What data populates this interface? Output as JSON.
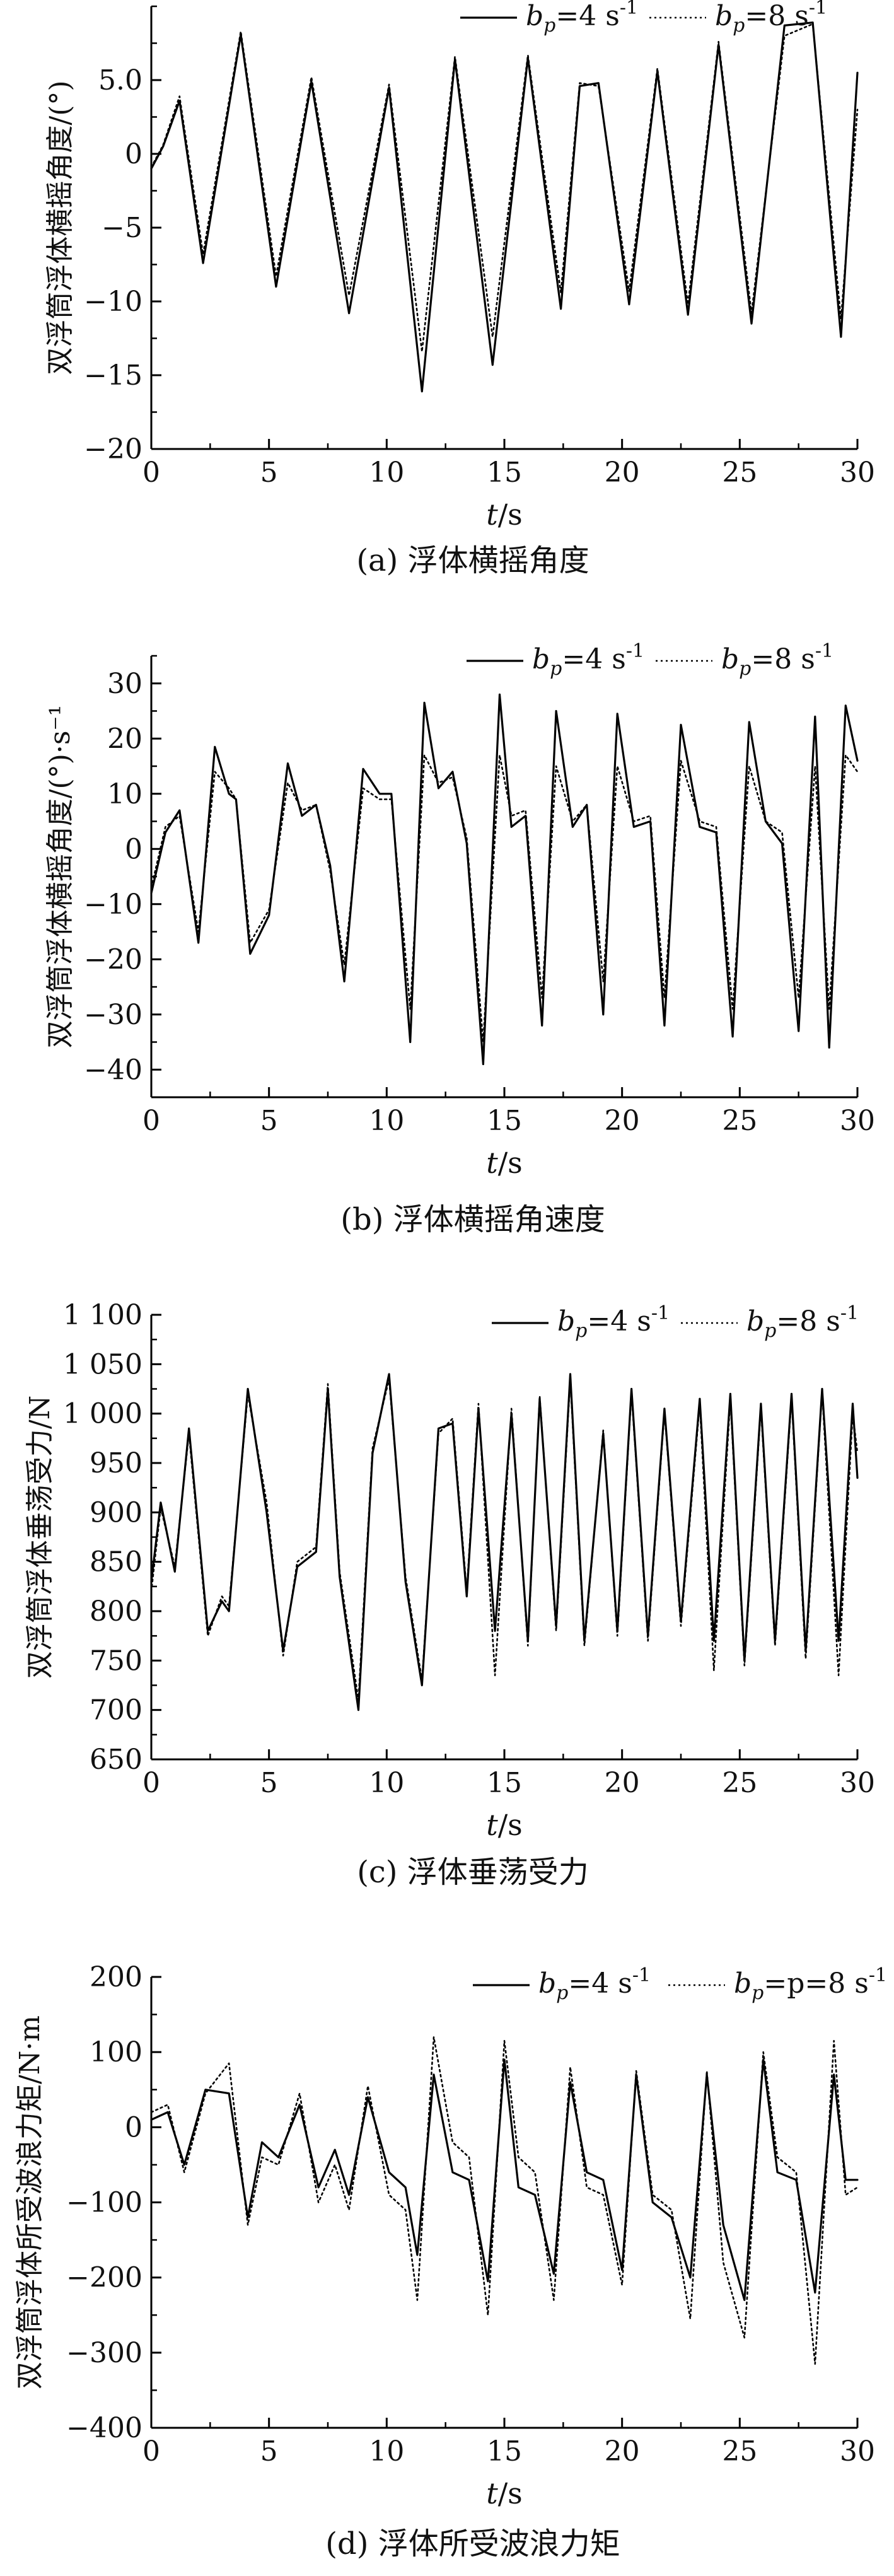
{
  "chart_data": [
    {
      "type": "line",
      "caption": "(a) 浮体横摇角度",
      "xlabel": "t/s",
      "ylabel": "双浮筒浮体横摇角度/(°)",
      "xlim": [
        0,
        30
      ],
      "ylim": [
        -20,
        10
      ],
      "x_ticks": [
        0,
        5,
        10,
        15,
        20,
        25,
        30
      ],
      "y_ticks": [
        -20,
        -15,
        -10,
        -5,
        0,
        5.0
      ],
      "y_tick_labels": [
        "−20",
        "−15",
        "−10",
        "−5",
        "0",
        "5.0"
      ],
      "y_minor_step": 2.5,
      "legend": {
        "placement": "top",
        "entries": [
          "bp=4 s-1",
          "bp=8 s-1"
        ]
      },
      "series": [
        {
          "name": "bp=4 s-1",
          "style": "solid",
          "x": [
            0,
            0.5,
            1.2,
            2.2,
            3.8,
            5.3,
            6.8,
            8.4,
            10.1,
            11.5,
            12.9,
            14.5,
            16.0,
            17.4,
            18.2,
            19.0,
            20.3,
            21.5,
            22.8,
            24.1,
            25.5,
            26.9,
            28.1,
            29.3,
            30
          ],
          "values": [
            -1.0,
            0.5,
            3.6,
            -7.4,
            8.1,
            -9.0,
            4.9,
            -10.8,
            4.5,
            -16.1,
            6.4,
            -14.3,
            6.5,
            -10.5,
            4.6,
            4.8,
            -10.2,
            5.6,
            -10.9,
            7.4,
            -11.5,
            8.7,
            8.9,
            -12.4,
            5.5
          ]
        },
        {
          "name": "bp=8 s-1",
          "style": "dotted",
          "x": [
            0,
            0.5,
            1.2,
            2.2,
            3.8,
            5.3,
            6.8,
            8.4,
            10.1,
            11.5,
            12.9,
            14.5,
            16.0,
            17.4,
            18.2,
            19.0,
            20.3,
            21.5,
            22.8,
            24.1,
            25.5,
            26.9,
            28.1,
            29.3,
            30
          ],
          "values": [
            -0.9,
            0.6,
            3.9,
            -6.8,
            8.3,
            -8.3,
            5.2,
            -9.6,
            4.7,
            -13.4,
            6.6,
            -12.4,
            6.7,
            -9.4,
            4.8,
            4.6,
            -9.3,
            5.8,
            -10.2,
            7.6,
            -10.8,
            8.0,
            8.8,
            -11.2,
            3.0
          ]
        }
      ]
    },
    {
      "type": "line",
      "caption": "(b) 浮体横摇角速度",
      "xlabel": "t/s",
      "ylabel": "双浮筒浮体横摇角度/(°)·s⁻¹",
      "xlim": [
        0,
        30
      ],
      "ylim": [
        -45,
        35
      ],
      "x_ticks": [
        0,
        5,
        10,
        15,
        20,
        25,
        30
      ],
      "y_ticks": [
        -40,
        -30,
        -20,
        -10,
        0,
        10,
        20,
        30
      ],
      "y_tick_labels": [
        "−40",
        "−30",
        "−20",
        "−10",
        "0",
        "10",
        "20",
        "30"
      ],
      "y_minor_step": 5,
      "legend": {
        "placement": "top",
        "entries": [
          "bp=4 s-1",
          "bp=8 s-1"
        ]
      },
      "series": [
        {
          "name": "bp=4 s-1",
          "style": "solid",
          "x": [
            0,
            0.6,
            1.2,
            2.0,
            2.7,
            3.3,
            3.6,
            4.2,
            5.0,
            5.8,
            6.4,
            7.0,
            7.6,
            8.2,
            9.0,
            9.7,
            10.2,
            11.0,
            11.6,
            12.2,
            12.8,
            13.4,
            14.1,
            14.8,
            15.3,
            15.9,
            16.6,
            17.2,
            17.9,
            18.5,
            19.2,
            19.8,
            20.5,
            21.2,
            21.8,
            22.5,
            23.3,
            24.0,
            24.7,
            25.4,
            26.1,
            26.8,
            27.5,
            28.2,
            28.8,
            29.5,
            30
          ],
          "values": [
            -8,
            3,
            7,
            -17,
            18.5,
            10,
            9,
            -19,
            -12,
            15.5,
            6,
            8,
            -3,
            -24,
            14.5,
            10,
            10,
            -35,
            26.5,
            11,
            14,
            1,
            -39,
            28,
            4,
            6,
            -32,
            25,
            4,
            8,
            -30,
            24.5,
            4,
            5,
            -32,
            22.5,
            4,
            3,
            -34,
            23,
            5,
            1,
            -33,
            24,
            -36,
            26,
            16
          ]
        },
        {
          "name": "bp=8 s-1",
          "style": "dotted",
          "x": [
            0,
            0.6,
            1.2,
            2.0,
            2.7,
            3.3,
            3.6,
            4.2,
            5.0,
            5.8,
            6.4,
            7.0,
            7.6,
            8.2,
            9.0,
            9.7,
            10.2,
            11.0,
            11.6,
            12.2,
            12.8,
            13.4,
            14.1,
            14.8,
            15.3,
            15.9,
            16.6,
            17.2,
            17.9,
            18.5,
            19.2,
            19.8,
            20.5,
            21.2,
            21.8,
            22.5,
            23.3,
            24.0,
            24.7,
            25.4,
            26.1,
            26.8,
            27.5,
            28.2,
            28.8,
            29.5,
            30
          ],
          "values": [
            -7,
            4,
            6,
            -15,
            14,
            11,
            9,
            -17,
            -11,
            12,
            7,
            8,
            -4,
            -21,
            11,
            9,
            9,
            -29,
            17,
            12,
            13,
            2,
            -35,
            17,
            6,
            7,
            -27,
            15,
            5,
            8,
            -24,
            15,
            5,
            6,
            -27,
            16,
            5,
            4,
            -29,
            15,
            5,
            3,
            -27,
            15,
            -29,
            17,
            14
          ]
        }
      ]
    },
    {
      "type": "line",
      "caption": "(c) 浮体垂荡受力",
      "xlabel": "t/s",
      "ylabel": "双浮筒浮体垂荡受力/N",
      "xlim": [
        0,
        30
      ],
      "ylim": [
        650,
        1100
      ],
      "x_ticks": [
        0,
        5,
        10,
        15,
        20,
        25,
        30
      ],
      "y_ticks": [
        650,
        700,
        750,
        800,
        850,
        900,
        950,
        1000,
        1050,
        1100
      ],
      "y_tick_labels": [
        "650",
        "700",
        "750",
        "800",
        "850",
        "900",
        "950",
        "1 000",
        "1 050",
        "1 100"
      ],
      "y_minor_step": 25,
      "legend": {
        "placement": "top",
        "entries": [
          "bp=4 s-1",
          "bp=8 s-1"
        ]
      },
      "series": [
        {
          "name": "bp=4 s-1",
          "style": "solid",
          "x": [
            0,
            0.4,
            1.0,
            1.6,
            2.4,
            3.0,
            3.3,
            4.1,
            4.9,
            5.6,
            6.2,
            7.0,
            7.5,
            8.0,
            8.8,
            9.4,
            10.1,
            10.8,
            11.5,
            12.2,
            12.8,
            13.4,
            13.9,
            14.6,
            15.3,
            16.0,
            16.5,
            17.2,
            17.8,
            18.4,
            19.2,
            19.8,
            20.4,
            21.1,
            21.8,
            22.5,
            23.3,
            23.9,
            24.6,
            25.2,
            25.9,
            26.5,
            27.2,
            27.8,
            28.5,
            29.2,
            29.8,
            30
          ],
          "values": [
            830,
            910,
            840,
            985,
            780,
            810,
            800,
            1025,
            900,
            760,
            845,
            860,
            1025,
            835,
            700,
            960,
            1040,
            830,
            725,
            985,
            990,
            815,
            1005,
            780,
            1000,
            770,
            1015,
            785,
            1040,
            770,
            980,
            780,
            1025,
            775,
            1005,
            790,
            1015,
            770,
            1020,
            750,
            1010,
            770,
            1020,
            760,
            1025,
            770,
            1010,
            935
          ]
        },
        {
          "name": "bp=8 s-1",
          "style": "dotted",
          "x": [
            0,
            0.4,
            1.0,
            1.6,
            2.4,
            3.0,
            3.3,
            4.1,
            4.9,
            5.6,
            6.2,
            7.0,
            7.5,
            8.0,
            8.8,
            9.4,
            10.1,
            10.8,
            11.5,
            12.2,
            12.8,
            13.4,
            13.9,
            14.6,
            15.3,
            16.0,
            16.5,
            17.2,
            17.8,
            18.4,
            19.2,
            19.8,
            20.4,
            21.1,
            21.8,
            22.5,
            23.3,
            23.9,
            24.6,
            25.2,
            25.9,
            26.5,
            27.2,
            27.8,
            28.5,
            29.2,
            29.8,
            30
          ],
          "values": [
            820,
            905,
            845,
            980,
            775,
            815,
            805,
            1020,
            910,
            755,
            850,
            865,
            1030,
            840,
            710,
            965,
            1035,
            835,
            730,
            980,
            995,
            820,
            1010,
            735,
            1005,
            765,
            1018,
            780,
            1035,
            765,
            983,
            775,
            1022,
            770,
            1002,
            785,
            1010,
            740,
            1015,
            745,
            1006,
            765,
            1016,
            752,
            1022,
            735,
            1000,
            960
          ]
        }
      ]
    },
    {
      "type": "line",
      "caption": "(d) 浮体所受波浪力矩",
      "xlabel": "t/s",
      "ylabel": "双浮筒浮体所受波浪力矩/N·m",
      "xlim": [
        0,
        30
      ],
      "ylim": [
        -400,
        200
      ],
      "x_ticks": [
        0,
        5,
        10,
        15,
        20,
        25,
        30
      ],
      "y_ticks": [
        -400,
        -300,
        -200,
        -100,
        0,
        100,
        200
      ],
      "y_tick_labels": [
        "−400",
        "−300",
        "−200",
        "−100",
        "0",
        "100",
        "200"
      ],
      "y_minor_step": 50,
      "legend": {
        "placement": "top",
        "entries": [
          "bp=4 s-1",
          "bp=p=8 s-1"
        ]
      },
      "series": [
        {
          "name": "bp=4 s-1",
          "style": "solid",
          "x": [
            0,
            0.7,
            1.4,
            2.3,
            3.3,
            4.1,
            4.7,
            5.4,
            6.3,
            7.1,
            7.8,
            8.4,
            9.2,
            10.1,
            10.8,
            11.3,
            12.0,
            12.8,
            13.5,
            14.3,
            15.0,
            15.6,
            16.3,
            17.1,
            17.8,
            18.5,
            19.2,
            20.0,
            20.6,
            21.3,
            22.1,
            22.9,
            23.6,
            24.3,
            25.2,
            26.0,
            26.6,
            27.4,
            28.2,
            29.0,
            29.5,
            30
          ],
          "values": [
            10,
            20,
            -50,
            50,
            45,
            -120,
            -20,
            -40,
            30,
            -80,
            -30,
            -90,
            40,
            -60,
            -80,
            -170,
            70,
            -60,
            -70,
            -205,
            90,
            -80,
            -90,
            -195,
            60,
            -60,
            -70,
            -190,
            70,
            -100,
            -120,
            -200,
            70,
            -130,
            -230,
            90,
            -60,
            -70,
            -220,
            70,
            -70,
            -70
          ]
        },
        {
          "name": "bp=8 s-1",
          "style": "dotted",
          "x": [
            0,
            0.7,
            1.4,
            2.3,
            3.3,
            4.1,
            4.7,
            5.4,
            6.3,
            7.1,
            7.8,
            8.4,
            9.2,
            10.1,
            10.8,
            11.3,
            12.0,
            12.8,
            13.5,
            14.3,
            15.0,
            15.6,
            16.3,
            17.1,
            17.8,
            18.5,
            19.2,
            20.0,
            20.6,
            21.3,
            22.1,
            22.9,
            23.6,
            24.3,
            25.2,
            26.0,
            26.6,
            27.4,
            28.2,
            29.0,
            29.5,
            30
          ],
          "values": [
            20,
            30,
            -60,
            45,
            85,
            -130,
            -40,
            -50,
            45,
            -100,
            -50,
            -110,
            55,
            -90,
            -110,
            -230,
            120,
            -20,
            -40,
            -250,
            115,
            -40,
            -60,
            -230,
            80,
            -80,
            -90,
            -210,
            75,
            -90,
            -110,
            -255,
            75,
            -180,
            -280,
            100,
            -40,
            -60,
            -315,
            115,
            -90,
            -80
          ]
        }
      ]
    }
  ]
}
